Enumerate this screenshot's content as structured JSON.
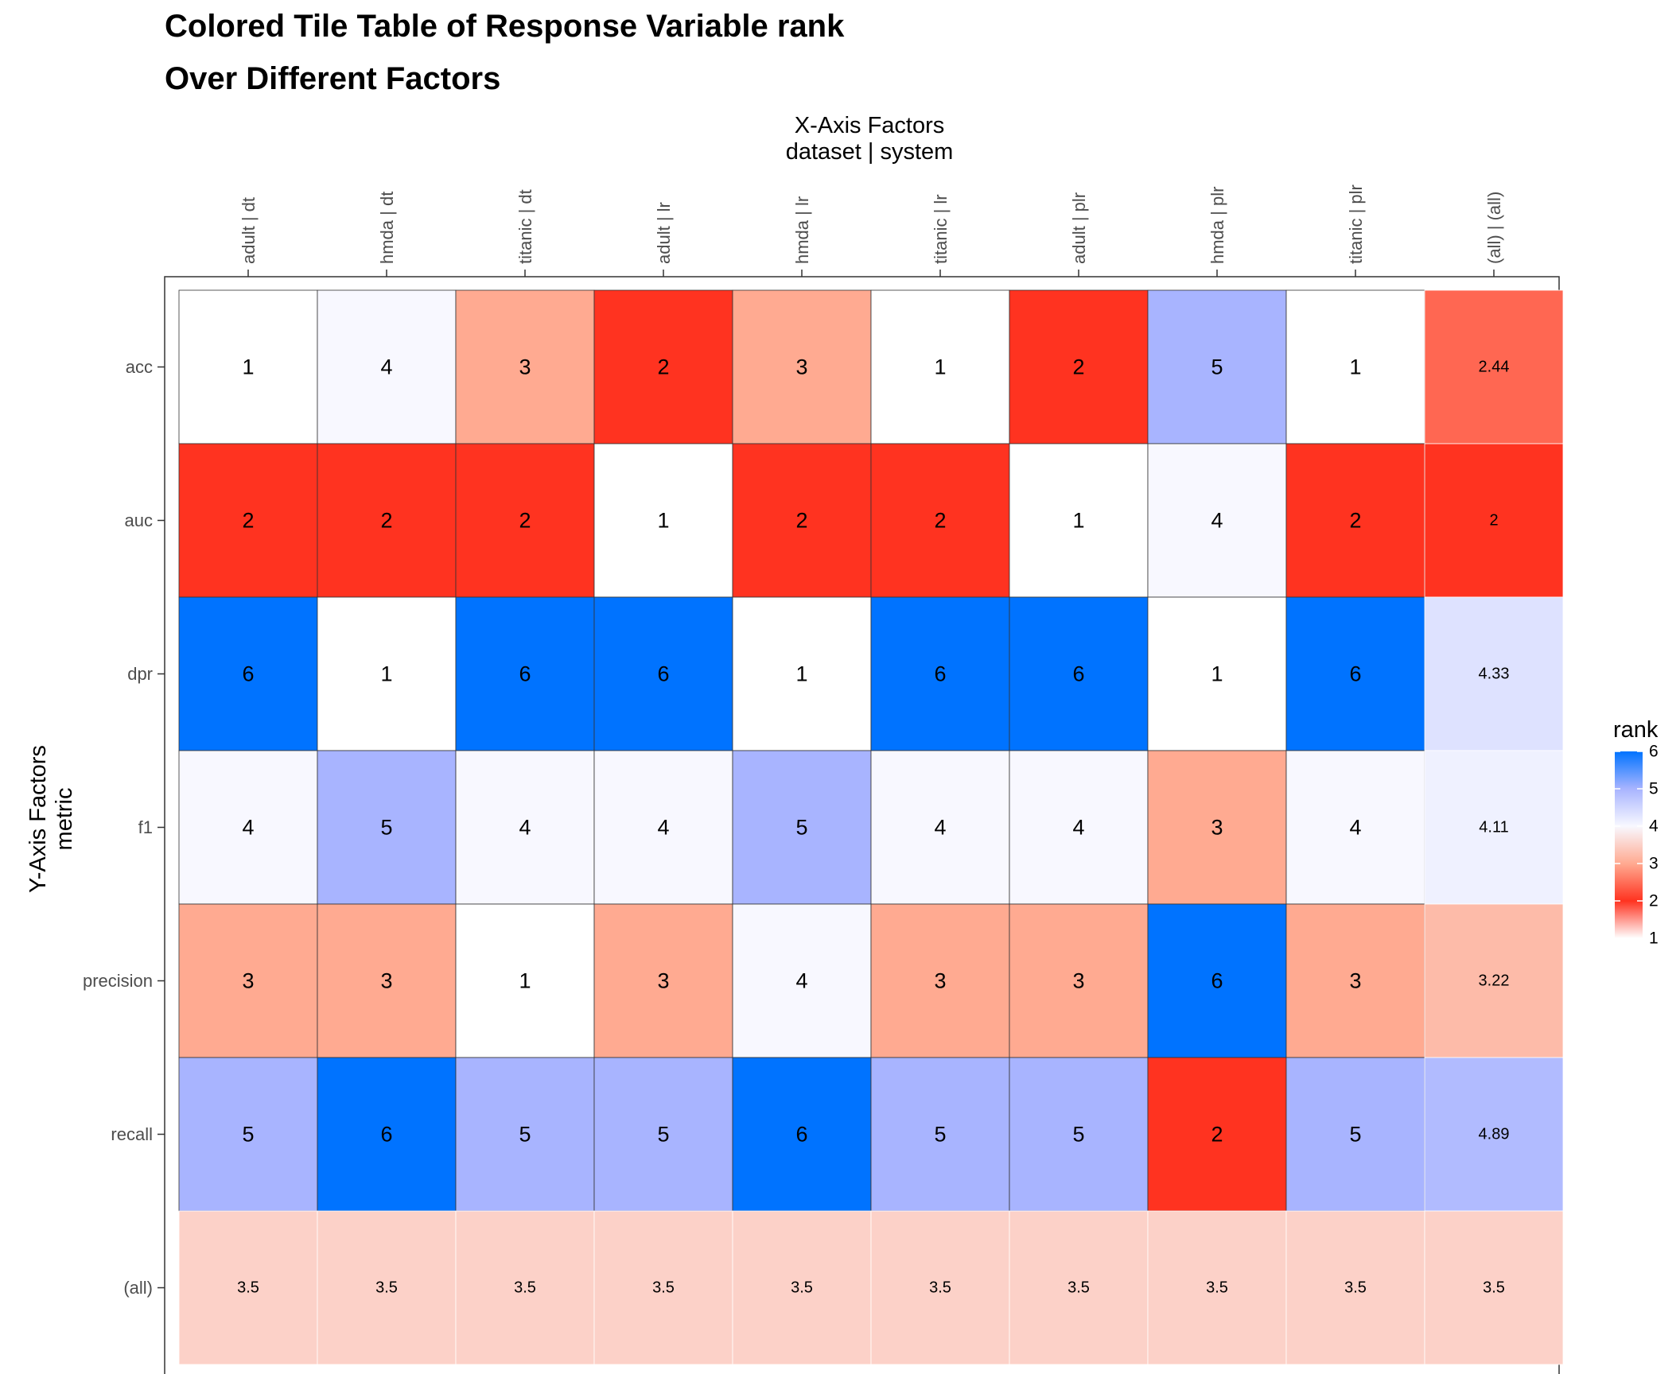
{
  "chart_data": {
    "type": "heatmap",
    "title_line1": "Colored Tile Table of Response Variable rank",
    "title_line2": "Over Different Factors",
    "xlabel_line1": "X-Axis Factors",
    "xlabel_line2": "dataset | system",
    "ylabel_line1": "Y-Axis Factors",
    "ylabel_line2": "metric",
    "x_categories": [
      "adult | dt",
      "hmda | dt",
      "titanic | dt",
      "adult | lr",
      "hmda | lr",
      "titanic | lr",
      "adult | plr",
      "hmda | plr",
      "titanic | plr",
      "(all) | (all)"
    ],
    "y_categories": [
      "acc",
      "auc",
      "dpr",
      "f1",
      "precision",
      "recall",
      "(all)"
    ],
    "values": [
      [
        1,
        4,
        3,
        2,
        3,
        1,
        2,
        5,
        1,
        2.44
      ],
      [
        2,
        2,
        2,
        1,
        2,
        2,
        1,
        4,
        2,
        2
      ],
      [
        6,
        1,
        6,
        6,
        1,
        6,
        6,
        1,
        6,
        4.33
      ],
      [
        4,
        5,
        4,
        4,
        5,
        4,
        4,
        3,
        4,
        4.11
      ],
      [
        3,
        3,
        1,
        3,
        4,
        3,
        3,
        6,
        3,
        3.22
      ],
      [
        5,
        6,
        5,
        5,
        6,
        5,
        5,
        2,
        5,
        4.89
      ],
      [
        3.5,
        3.5,
        3.5,
        3.5,
        3.5,
        3.5,
        3.5,
        3.5,
        3.5,
        3.5
      ]
    ],
    "legend": {
      "title": "rank",
      "breaks": [
        6,
        5,
        4,
        3,
        2,
        1
      ],
      "range": [
        1,
        6
      ],
      "colors": {
        "1": "#ffffff",
        "2": "#ff3320",
        "3": "#ffaa91",
        "4": "#f8f8ff",
        "5": "#a8b4ff",
        "6": "#0073ff"
      }
    },
    "grid": false
  }
}
